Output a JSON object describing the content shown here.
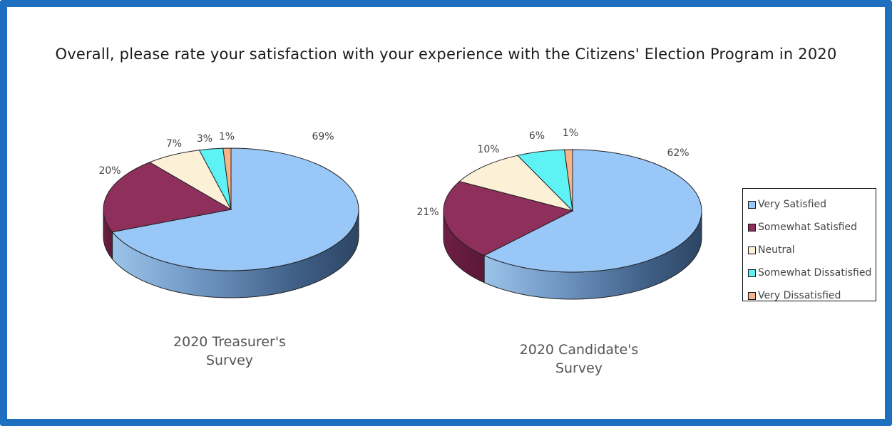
{
  "title": "Overall, please rate your satisfaction with your experience  with the Citizens' Election Program in 2020",
  "colors": {
    "frame": "#1f6fc0",
    "very_satisfied": "#99c8f8",
    "somewhat_satisfied": "#8f2f5c",
    "neutral": "#fcf1d6",
    "somewhat_dissatisfied": "#5ff2f4",
    "very_dissatisfied": "#f8b489"
  },
  "legend": [
    {
      "label": "Very Satisfied",
      "color": "#99c8f8"
    },
    {
      "label": "Somewhat Satisfied",
      "color": "#8f2f5c"
    },
    {
      "label": "Neutral",
      "color": "#fcf1d6"
    },
    {
      "label": "Somewhat Dissatisfied",
      "color": "#5ff2f4"
    },
    {
      "label": "Very Dissatisfied",
      "color": "#f8b489"
    }
  ],
  "chart_data": [
    {
      "type": "pie",
      "style": "3d",
      "title": "2020 Treasurer's Survey",
      "caption_line1": "2020 Treasurer's",
      "caption_line2": "Survey",
      "categories": [
        "Very Satisfied",
        "Somewhat Satisfied",
        "Neutral",
        "Somewhat Dissatisfied",
        "Very Dissatisfied"
      ],
      "values": [
        69,
        20,
        7,
        3,
        1
      ],
      "labels": [
        "69%",
        "20%",
        "7%",
        "3%",
        "1%"
      ]
    },
    {
      "type": "pie",
      "style": "3d",
      "title": "2020 Candidate's Survey",
      "caption_line1": "2020 Candidate's",
      "caption_line2": "Survey",
      "categories": [
        "Very Satisfied",
        "Somewhat Satisfied",
        "Neutral",
        "Somewhat Dissatisfied",
        "Very Dissatisfied"
      ],
      "values": [
        62,
        21,
        10,
        6,
        1
      ],
      "labels": [
        "62%",
        "21%",
        "10%",
        "6%",
        "1%"
      ]
    }
  ]
}
